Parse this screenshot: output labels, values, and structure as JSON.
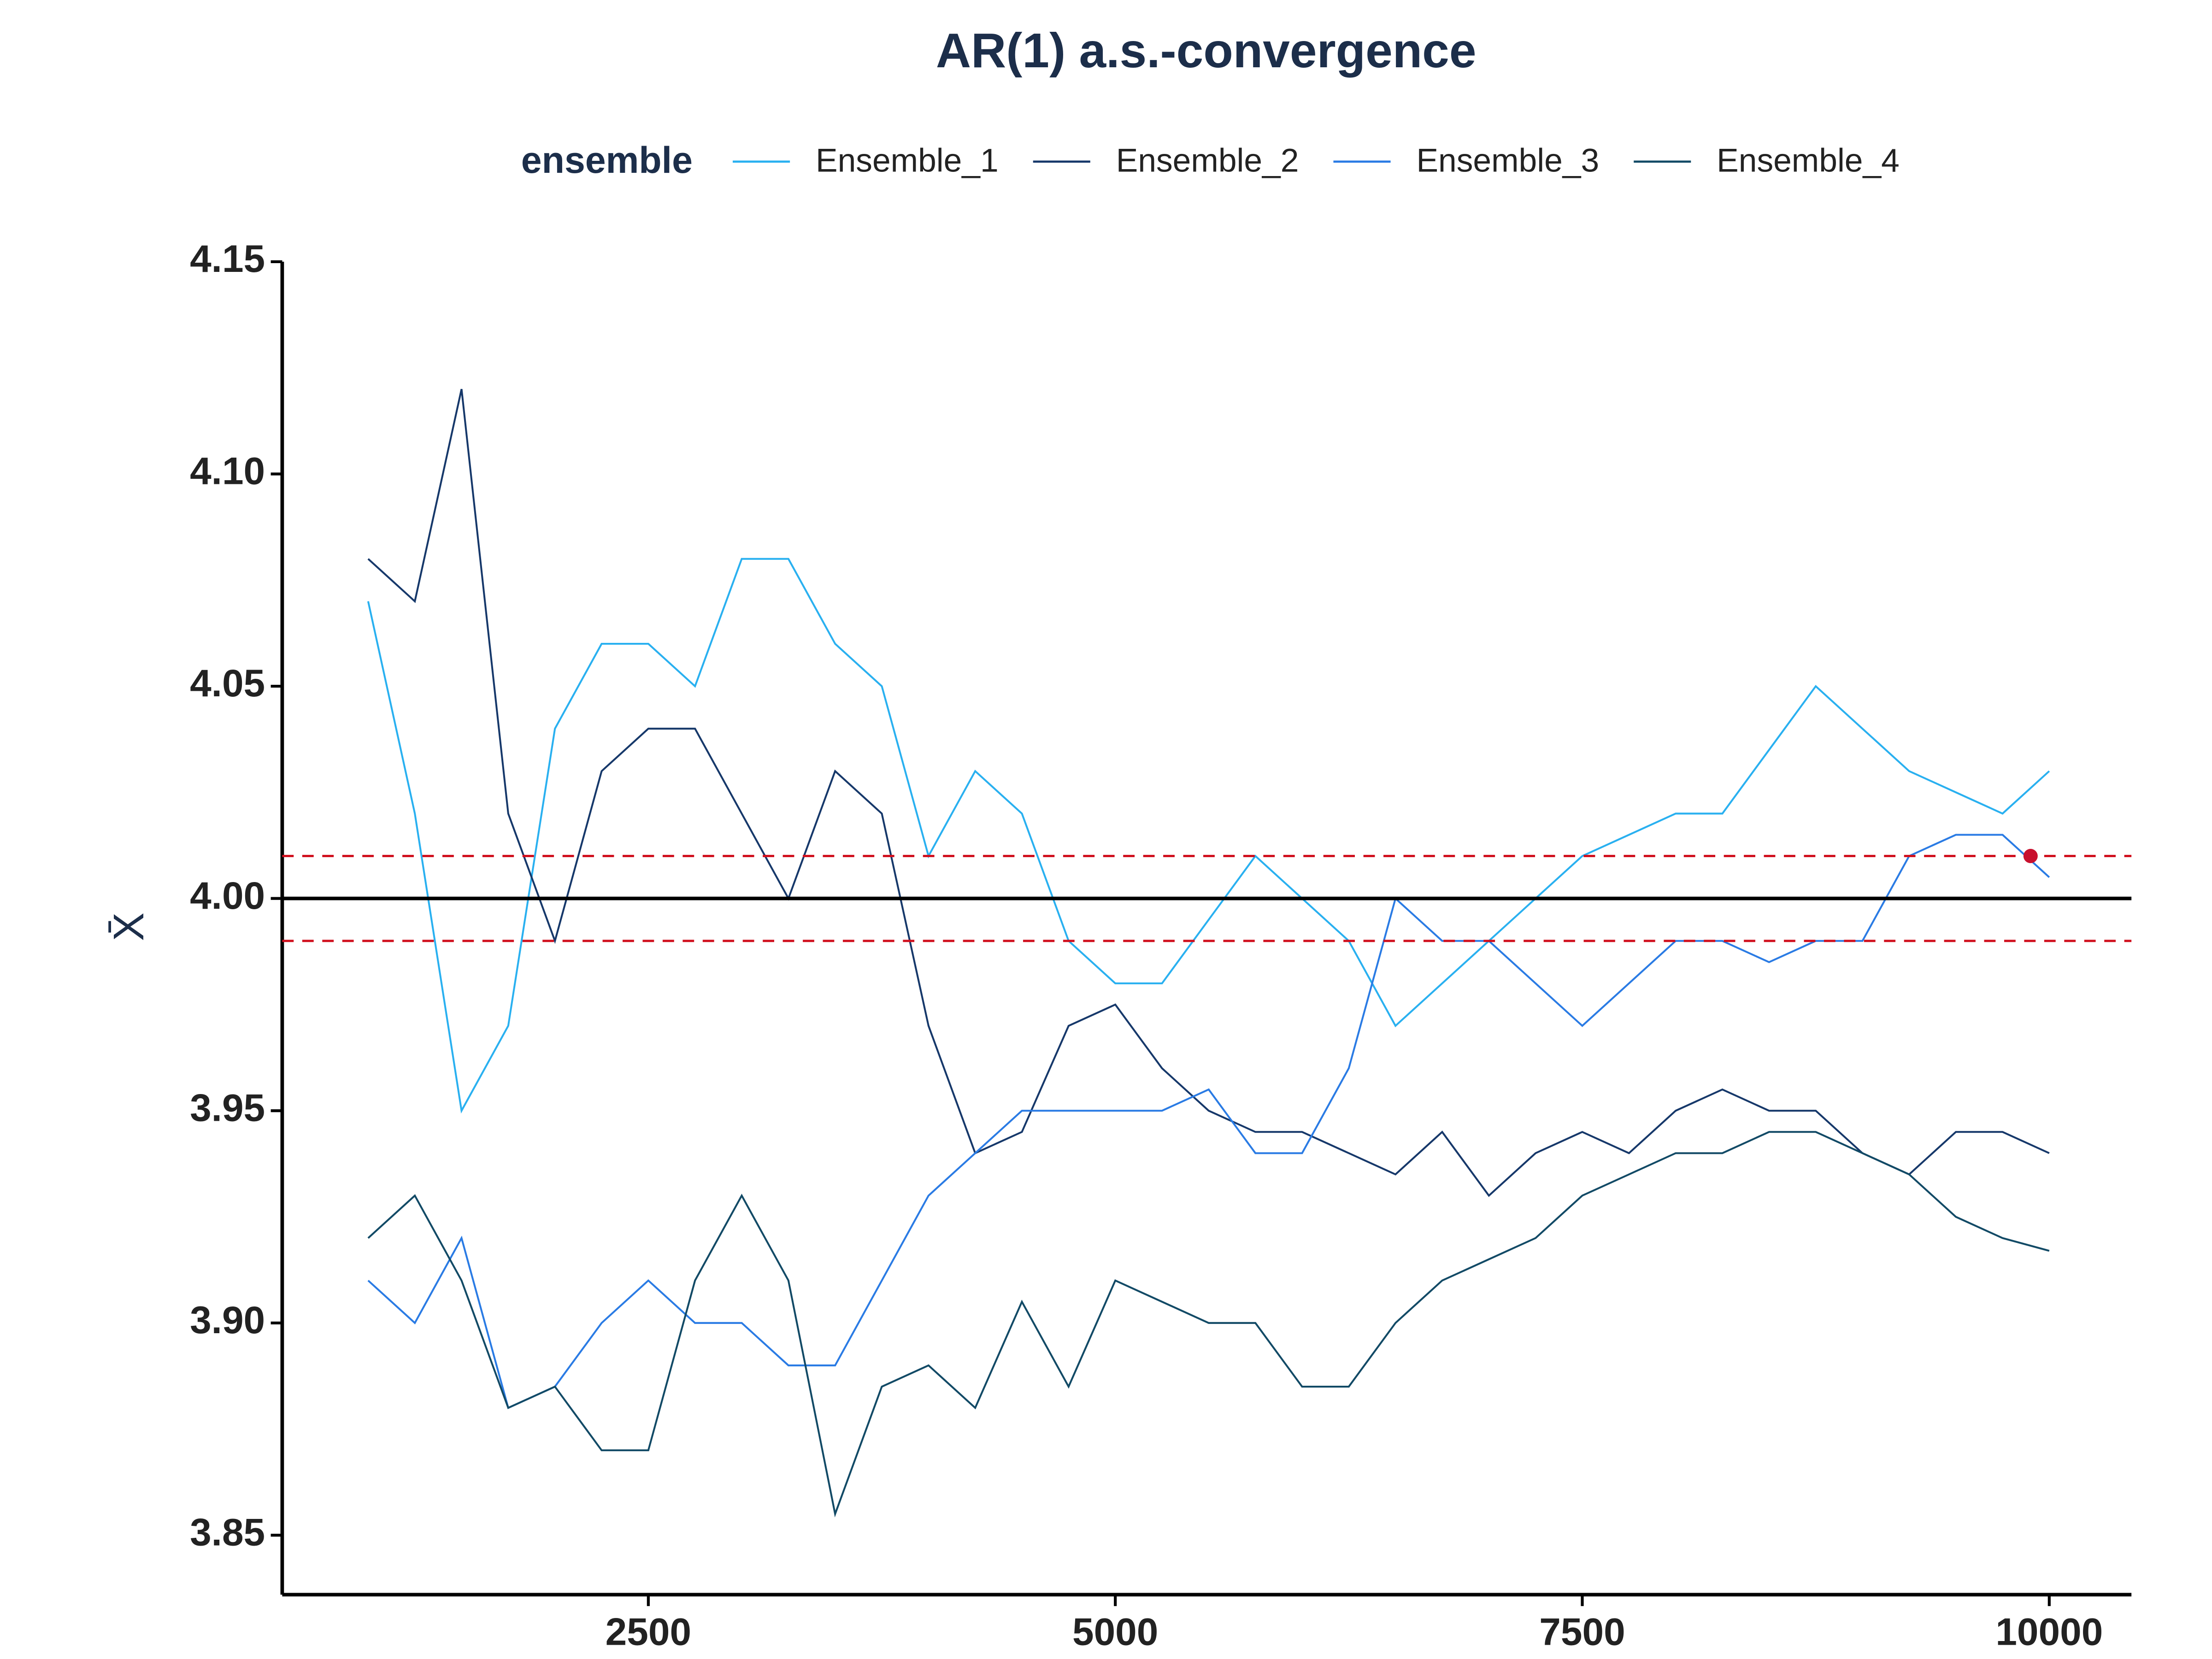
{
  "chart_data": {
    "type": "line",
    "title": "AR(1) a.s.-convergence",
    "y_label": "X̄",
    "legend_title": "ensemble",
    "legend": "top",
    "x": [
      1000,
      1250,
      1500,
      1750,
      2000,
      2250,
      2500,
      2750,
      3000,
      3250,
      3500,
      3750,
      4000,
      4250,
      4500,
      4750,
      5000,
      5250,
      5500,
      5750,
      6000,
      6250,
      6500,
      6750,
      7000,
      7250,
      7500,
      7750,
      8000,
      8250,
      8500,
      8750,
      9000,
      9250,
      9500,
      9750,
      10000
    ],
    "series": [
      {
        "name": "Ensemble_1",
        "color": "#29b0f0",
        "values": [
          4.07,
          4.02,
          3.95,
          3.97,
          4.04,
          4.06,
          4.06,
          4.05,
          4.08,
          4.08,
          4.06,
          4.05,
          4.01,
          4.03,
          4.02,
          3.99,
          3.98,
          3.98,
          3.995,
          4.01,
          4.0,
          3.99,
          3.97,
          3.98,
          3.99,
          4.0,
          4.01,
          4.015,
          4.02,
          4.02,
          4.035,
          4.05,
          4.04,
          4.03,
          4.025,
          4.02,
          4.03
        ]
      },
      {
        "name": "Ensemble_2",
        "color": "#16386a",
        "values": [
          4.08,
          4.07,
          4.12,
          4.02,
          3.99,
          4.03,
          4.04,
          4.04,
          4.02,
          4.0,
          4.03,
          4.02,
          3.97,
          3.94,
          3.945,
          3.97,
          3.975,
          3.96,
          3.95,
          3.945,
          3.945,
          3.94,
          3.935,
          3.945,
          3.93,
          3.94,
          3.945,
          3.94,
          3.95,
          3.955,
          3.95,
          3.95,
          3.94,
          3.935,
          3.945,
          3.945,
          3.94
        ]
      },
      {
        "name": "Ensemble_3",
        "color": "#2a7be4",
        "values": [
          3.91,
          3.9,
          3.92,
          3.88,
          3.885,
          3.9,
          3.91,
          3.9,
          3.9,
          3.89,
          3.89,
          3.91,
          3.93,
          3.94,
          3.95,
          3.95,
          3.95,
          3.95,
          3.955,
          3.94,
          3.94,
          3.96,
          4.0,
          3.99,
          3.99,
          3.98,
          3.97,
          3.98,
          3.99,
          3.99,
          3.985,
          3.99,
          3.99,
          4.01,
          4.015,
          4.015,
          4.005
        ]
      },
      {
        "name": "Ensemble_4",
        "color": "#124a66",
        "values": [
          3.92,
          3.93,
          3.91,
          3.88,
          3.885,
          3.87,
          3.87,
          3.91,
          3.93,
          3.91,
          3.855,
          3.885,
          3.89,
          3.88,
          3.905,
          3.885,
          3.91,
          3.905,
          3.9,
          3.9,
          3.885,
          3.885,
          3.9,
          3.91,
          3.915,
          3.92,
          3.93,
          3.935,
          3.94,
          3.94,
          3.945,
          3.945,
          3.94,
          3.935,
          3.925,
          3.92,
          3.917
        ]
      }
    ],
    "reference_lines": [
      {
        "value": 4,
        "color": "#000000",
        "style": "solid"
      },
      {
        "value": 4.01,
        "color": "#d0101e",
        "style": "dashed"
      },
      {
        "value": 3.99,
        "color": "#d0101e",
        "style": "dashed"
      }
    ],
    "points": [
      {
        "x": 9900,
        "y": 4.01,
        "color": "#c8102e"
      }
    ],
    "xlim": [
      540,
      10440
    ],
    "ylim": [
      3.836,
      4.15
    ],
    "xticks": [
      2500,
      5000,
      7500,
      10000
    ],
    "yticks": [
      3.85,
      {
        "value": 3.9,
        "label": "3.90"
      },
      3.95,
      {
        "value": 4,
        "label": "4.00"
      },
      4.05,
      {
        "value": 4.1,
        "label": "4.10"
      },
      4.15
    ],
    "grid": false
  }
}
